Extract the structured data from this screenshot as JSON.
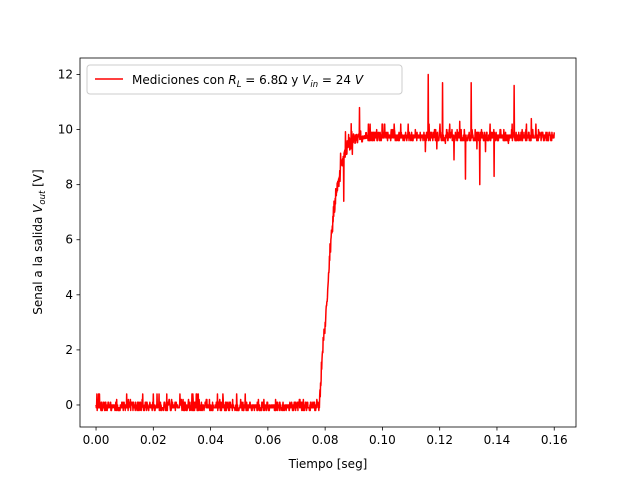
{
  "chart_data": {
    "type": "line",
    "title": "",
    "xlabel": "Tiempo [seg]",
    "ylabel": {
      "main": "Senal a la salida ",
      "var": "V",
      "sub": "out",
      "unit": " [V]"
    },
    "xlim": [
      -0.0056,
      0.1676
    ],
    "ylim": [
      -0.8,
      12.6
    ],
    "xticks": [
      0.0,
      0.02,
      0.04,
      0.06,
      0.08,
      0.1,
      0.12,
      0.14,
      0.16
    ],
    "xtick_labels": [
      "0.00",
      "0.02",
      "0.04",
      "0.06",
      "0.08",
      "0.10",
      "0.12",
      "0.14",
      "0.16"
    ],
    "yticks": [
      0,
      2,
      4,
      6,
      8,
      10,
      12
    ],
    "ytick_labels": [
      "0",
      "2",
      "4",
      "6",
      "8",
      "10",
      "12"
    ],
    "grid": false,
    "legend_placement": "top-left",
    "series": [
      {
        "name_parts": {
          "prefix": "Mediciones con ",
          "r": "R",
          "r_sub": "L",
          "r_val": " = 6.8Ω y ",
          "v": "V",
          "v_sub": "in",
          "v_val": " = 24 ",
          "v_unit": "V"
        },
        "color": "#ff0000",
        "noise_levels": [
          -0.2,
          -0.1,
          0.0,
          0.1,
          0.2,
          0.4
        ],
        "points": [
          [
            0.0,
            0.0
          ],
          [
            0.078,
            0.0
          ],
          [
            0.079,
            2.0
          ],
          [
            0.08,
            3.0
          ],
          [
            0.081,
            4.5
          ],
          [
            0.082,
            6.0
          ],
          [
            0.083,
            7.0
          ],
          [
            0.084,
            8.0
          ],
          [
            0.085,
            8.3
          ],
          [
            0.086,
            8.9
          ],
          [
            0.087,
            9.3
          ],
          [
            0.088,
            9.5
          ],
          [
            0.09,
            9.7
          ],
          [
            0.095,
            9.8
          ],
          [
            0.1,
            9.8
          ],
          [
            0.16,
            9.8
          ]
        ],
        "spikes": [
          [
            0.0865,
            7.4
          ],
          [
            0.0895,
            9.1
          ],
          [
            0.092,
            10.8
          ],
          [
            0.115,
            9.2
          ],
          [
            0.116,
            12.0
          ],
          [
            0.119,
            9.3
          ],
          [
            0.121,
            11.7
          ],
          [
            0.122,
            9.5
          ],
          [
            0.125,
            8.9
          ],
          [
            0.127,
            10.3
          ],
          [
            0.129,
            8.2
          ],
          [
            0.131,
            11.7
          ],
          [
            0.133,
            9.3
          ],
          [
            0.134,
            8.0
          ],
          [
            0.136,
            9.2
          ],
          [
            0.139,
            8.3
          ],
          [
            0.144,
            9.5
          ],
          [
            0.146,
            11.6
          ],
          [
            0.1475,
            9.6
          ],
          [
            0.152,
            10.4
          ]
        ]
      }
    ]
  }
}
